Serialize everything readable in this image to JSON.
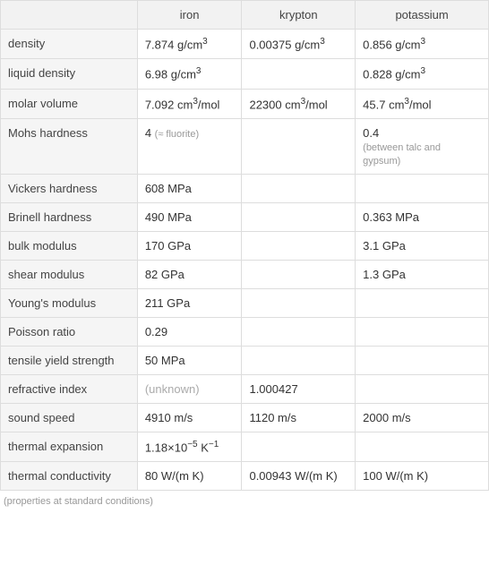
{
  "header": {
    "blank": "",
    "col1": "iron",
    "col2": "krypton",
    "col3": "potassium"
  },
  "rows": {
    "density": {
      "label": "density",
      "iron_val": "7.874 g/cm",
      "iron_sup": "3",
      "krypton_val": "0.00375 g/cm",
      "krypton_sup": "3",
      "potassium_val": "0.856 g/cm",
      "potassium_sup": "3"
    },
    "liquid_density": {
      "label": "liquid density",
      "iron_val": "6.98 g/cm",
      "iron_sup": "3",
      "krypton_val": "",
      "potassium_val": "0.828 g/cm",
      "potassium_sup": "3"
    },
    "molar_volume": {
      "label": "molar volume",
      "iron_val": "7.092 cm",
      "iron_sup": "3",
      "iron_suffix": "/mol",
      "krypton_val": "22300 cm",
      "krypton_sup": "3",
      "krypton_suffix": "/mol",
      "potassium_val": "45.7 cm",
      "potassium_sup": "3",
      "potassium_suffix": "/mol"
    },
    "mohs": {
      "label": "Mohs hardness",
      "iron_val": "4 ",
      "iron_note": "(≈ fluorite)",
      "krypton_val": "",
      "potassium_val": "0.4",
      "potassium_note": "(between talc and gypsum)"
    },
    "vickers": {
      "label": "Vickers hardness",
      "iron_val": "608 MPa",
      "krypton_val": "",
      "potassium_val": ""
    },
    "brinell": {
      "label": "Brinell hardness",
      "iron_val": "490 MPa",
      "krypton_val": "",
      "potassium_val": "0.363 MPa"
    },
    "bulk": {
      "label": "bulk modulus",
      "iron_val": "170 GPa",
      "krypton_val": "",
      "potassium_val": "3.1 GPa"
    },
    "shear": {
      "label": "shear modulus",
      "iron_val": "82 GPa",
      "krypton_val": "",
      "potassium_val": "1.3 GPa"
    },
    "young": {
      "label": "Young's modulus",
      "iron_val": "211 GPa",
      "krypton_val": "",
      "potassium_val": ""
    },
    "poisson": {
      "label": "Poisson ratio",
      "iron_val": "0.29",
      "krypton_val": "",
      "potassium_val": ""
    },
    "tensile": {
      "label": "tensile yield strength",
      "iron_val": "50 MPa",
      "krypton_val": "",
      "potassium_val": ""
    },
    "refractive": {
      "label": "refractive index",
      "iron_val": "(unknown)",
      "krypton_val": "1.000427",
      "potassium_val": ""
    },
    "sound": {
      "label": "sound speed",
      "iron_val": "4910 m/s",
      "krypton_val": "1120 m/s",
      "potassium_val": "2000 m/s"
    },
    "thermal_exp": {
      "label": "thermal expansion",
      "iron_pre": "1.18×10",
      "iron_sup": "−5",
      "iron_post": " K",
      "iron_sup2": "−1",
      "krypton_val": "",
      "potassium_val": ""
    },
    "thermal_cond": {
      "label": "thermal conductivity",
      "iron_val": "80 W/(m K)",
      "krypton_val": "0.00943 W/(m K)",
      "potassium_val": "100 W/(m K)"
    }
  },
  "footnote": "(properties at standard conditions)",
  "colors": {
    "border": "#dddddd",
    "header_bg": "#f2f2f2",
    "row_label_bg": "#f5f5f5",
    "text": "#333333",
    "note": "#999999",
    "unknown": "#aaaaaa"
  }
}
